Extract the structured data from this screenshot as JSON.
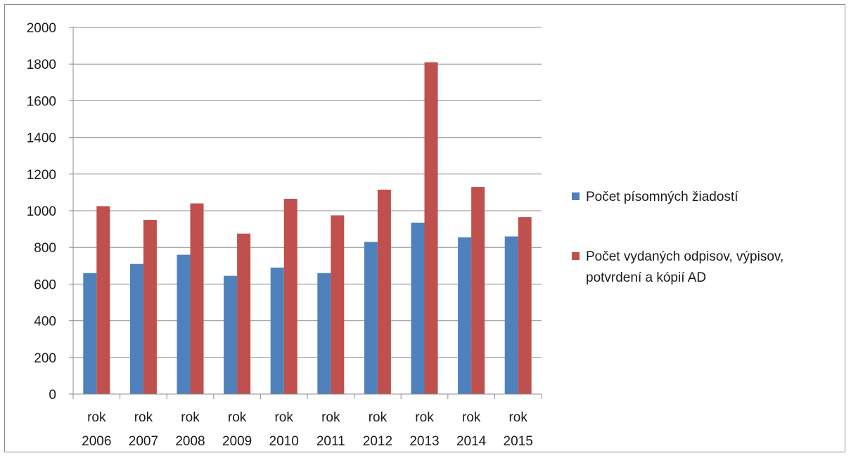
{
  "chart_data": {
    "type": "bar",
    "title": "",
    "xlabel": "",
    "ylabel": "",
    "ylim": [
      0,
      2000
    ],
    "yticks": [
      0,
      200,
      400,
      600,
      800,
      1000,
      1200,
      1400,
      1600,
      1800,
      2000
    ],
    "grid": true,
    "legend_position": "right",
    "categories": [
      [
        "rok",
        "2006"
      ],
      [
        "rok",
        "2007"
      ],
      [
        "rok",
        "2008"
      ],
      [
        "rok",
        "2009"
      ],
      [
        "rok",
        "2010"
      ],
      [
        "rok",
        "2011"
      ],
      [
        "rok",
        "2012"
      ],
      [
        "rok",
        "2013"
      ],
      [
        "rok",
        "2014"
      ],
      [
        "rok",
        "2015"
      ]
    ],
    "series": [
      {
        "name": "Počet písomných žiadostí",
        "legend_lines": [
          "Počet písomných žiadostí"
        ],
        "color": "#4f81bd",
        "values": [
          660,
          710,
          760,
          645,
          690,
          660,
          830,
          935,
          855,
          860
        ]
      },
      {
        "name": "Počet vydaných odpisov, výpisov, potvrdení a kópií AD",
        "legend_lines": [
          "Počet vydaných odpisov, výpisov,",
          "potvrdení a kópií AD"
        ],
        "color": "#c0504d",
        "values": [
          1025,
          950,
          1040,
          875,
          1065,
          975,
          1115,
          1810,
          1130,
          965
        ]
      }
    ]
  }
}
